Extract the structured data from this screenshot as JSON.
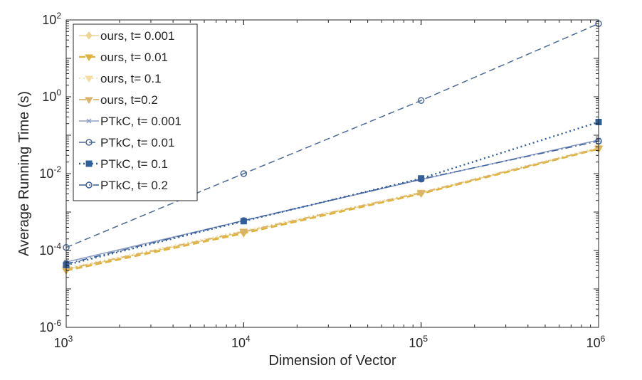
{
  "chart_data": {
    "type": "line",
    "xscale": "log",
    "yscale": "log",
    "x": [
      1000,
      10000,
      100000,
      1000000
    ],
    "x_tick_labels": [
      {
        "base": "10",
        "exp": "3"
      },
      {
        "base": "10",
        "exp": "4"
      },
      {
        "base": "10",
        "exp": "5"
      },
      {
        "base": "10",
        "exp": "6"
      }
    ],
    "y_tick_labels": [
      {
        "base": "10",
        "exp": "-6"
      },
      {
        "base": "10",
        "exp": "-4"
      },
      {
        "base": "10",
        "exp": "-2"
      },
      {
        "base": "10",
        "exp": "0"
      },
      {
        "base": "10",
        "exp": "2"
      }
    ],
    "xlim": [
      1000,
      1000000
    ],
    "ylim": [
      1e-06,
      100
    ],
    "xlabel": "Dimension of Vector",
    "ylabel": "Average Running Time (s)",
    "grid": false,
    "legend_position": "top-left",
    "series": [
      {
        "name": "ours, t= 0.001",
        "color": "#EDD493",
        "dash": "solid",
        "width": 1.5,
        "marker": "diamond",
        "values": [
          3.2e-05,
          0.0003,
          0.0031,
          0.045
        ]
      },
      {
        "name": "ours, t= 0.01",
        "color": "#E0B43C",
        "dash": "dash",
        "width": 2.6,
        "marker": "triangle-down",
        "values": [
          3e-05,
          0.00028,
          0.003,
          0.044
        ]
      },
      {
        "name": "ours, t= 0.1",
        "color": "#F3DDA0",
        "dash": "dot",
        "width": 1.8,
        "marker": "triangle-down",
        "values": [
          3.5e-05,
          0.00033,
          0.0033,
          0.048
        ]
      },
      {
        "name": "ours, t=0.2",
        "color": "#D9B46A",
        "dash": "dashdot",
        "width": 1.8,
        "marker": "triangle-down",
        "values": [
          3.3e-05,
          0.00031,
          0.0032,
          0.046
        ]
      },
      {
        "name": "PTkC, t= 0.001",
        "color": "#8DA0C4",
        "dash": "solid",
        "width": 1.5,
        "marker": "x",
        "values": [
          5e-05,
          0.0006,
          0.007,
          0.075
        ]
      },
      {
        "name": "PTkC, t= 0.01",
        "color": "#4C6A97",
        "dash": "dash",
        "width": 1.5,
        "marker": "circle",
        "values": [
          0.00012,
          0.01,
          0.8,
          80
        ]
      },
      {
        "name": "PTkC, t= 0.1",
        "color": "#2E5F99",
        "dash": "dot",
        "width": 2.4,
        "marker": "square",
        "values": [
          4.2e-05,
          0.00058,
          0.0075,
          0.22
        ]
      },
      {
        "name": "PTkC, t= 0.2",
        "color": "#3B5E9B",
        "dash": "dashdot",
        "width": 1.5,
        "marker": "circle",
        "values": [
          4.5e-05,
          0.0006,
          0.0072,
          0.07
        ]
      }
    ]
  }
}
